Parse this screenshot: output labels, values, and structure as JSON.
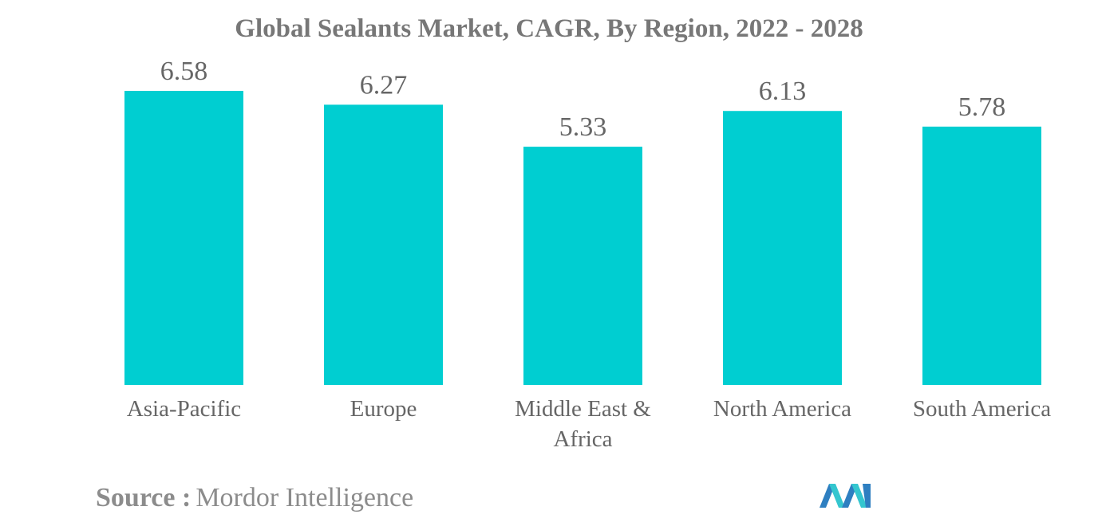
{
  "chart_data": {
    "type": "bar",
    "title": "Global Sealants Market, CAGR, By Region, 2022 - 2028",
    "xlabel": "",
    "ylabel": "",
    "categories": [
      "Asia-Pacific",
      "Europe",
      "Middle East & Africa",
      "North America",
      "South America"
    ],
    "category_lines": [
      [
        "Asia-Pacific"
      ],
      [
        "Europe"
      ],
      [
        "Middle East &",
        "Africa"
      ],
      [
        "North America"
      ],
      [
        "South America"
      ]
    ],
    "values": [
      6.58,
      6.27,
      5.33,
      6.13,
      5.78
    ],
    "value_labels": [
      "6.58",
      "6.27",
      "5.33",
      "6.13",
      "5.78"
    ],
    "ylim": [
      0,
      6.58
    ],
    "grid": false,
    "legend": "none",
    "colors": {
      "bar": "#00ced1",
      "text": "#666666",
      "title": "#777777"
    }
  },
  "source": {
    "label": "Source :",
    "value": "Mordor Intelligence"
  },
  "logo": {
    "icon": "mordor-intelligence-logo-icon",
    "colors": [
      "#2e7fc1",
      "#34c6cf"
    ]
  }
}
